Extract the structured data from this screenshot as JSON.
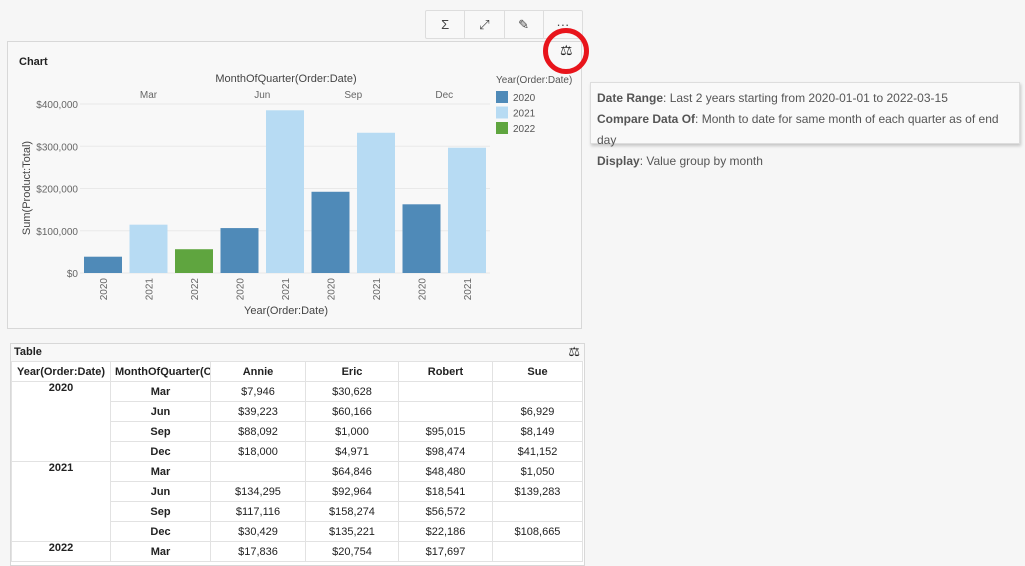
{
  "toolbar": {
    "buttons": [
      {
        "icon": "formula-icon",
        "glyph": "Σ"
      },
      {
        "icon": "expand-icon",
        "glyph": "⤢"
      },
      {
        "icon": "edit-icon",
        "glyph": "✎"
      },
      {
        "icon": "more-icon",
        "glyph": "···"
      }
    ]
  },
  "chart": {
    "title": "Chart",
    "compare_icon": "scales-icon"
  },
  "chart_data": {
    "type": "bar",
    "title": "",
    "top_axis_label": "MonthOfQuarter(Order:Date)",
    "xlabel": "Year(Order:Date)",
    "ylabel": "Sum(Product:Total)",
    "ylim": [
      0,
      400000
    ],
    "yticks": [
      "$0",
      "$100,000",
      "$200,000",
      "$300,000",
      "$400,000"
    ],
    "groups": [
      {
        "month": "Mar",
        "bars": [
          {
            "year": "2020",
            "value": 38574
          },
          {
            "year": "2021",
            "value": 114376
          },
          {
            "year": "2022",
            "value": 56287
          }
        ]
      },
      {
        "month": "Jun",
        "bars": [
          {
            "year": "2020",
            "value": 106318
          },
          {
            "year": "2021",
            "value": 385083
          }
        ]
      },
      {
        "month": "Sep",
        "bars": [
          {
            "year": "2020",
            "value": 192256
          },
          {
            "year": "2021",
            "value": 331962
          }
        ]
      },
      {
        "month": "Dec",
        "bars": [
          {
            "year": "2020",
            "value": 162597
          },
          {
            "year": "2021",
            "value": 296501
          }
        ]
      }
    ],
    "legend": {
      "title": "Year(Order:Date)",
      "placement": "right",
      "entries": [
        {
          "name": "2020",
          "color": "#4f8ab8"
        },
        {
          "name": "2021",
          "color": "#b7dbf3"
        },
        {
          "name": "2022",
          "color": "#5fa53f"
        }
      ]
    }
  },
  "tooltip": {
    "lines": [
      {
        "k": "Date Range",
        "v": ": Last 2 years starting from 2020-01-01 to 2022-03-15"
      },
      {
        "k": "Compare Data Of",
        "v": ": Month to date for same month of each quarter as of end day"
      },
      {
        "k": "Display",
        "v": ": Value group by month"
      }
    ]
  },
  "table": {
    "title": "Table",
    "headers": [
      "Year(Order:Date)",
      "MonthOfQuarter(Or",
      "Annie",
      "Eric",
      "Robert",
      "Sue"
    ],
    "rows": [
      {
        "year": "2020",
        "month": "Mar",
        "v": [
          "$7,946",
          "$30,628",
          "",
          ""
        ]
      },
      {
        "year": "",
        "month": "Jun",
        "v": [
          "$39,223",
          "$60,166",
          "",
          "$6,929"
        ]
      },
      {
        "year": "",
        "month": "Sep",
        "v": [
          "$88,092",
          "$1,000",
          "$95,015",
          "$8,149"
        ]
      },
      {
        "year": "",
        "month": "Dec",
        "v": [
          "$18,000",
          "$4,971",
          "$98,474",
          "$41,152"
        ]
      },
      {
        "year": "2021",
        "month": "Mar",
        "v": [
          "",
          "$64,846",
          "$48,480",
          "$1,050"
        ]
      },
      {
        "year": "",
        "month": "Jun",
        "v": [
          "$134,295",
          "$92,964",
          "$18,541",
          "$139,283"
        ]
      },
      {
        "year": "",
        "month": "Sep",
        "v": [
          "$117,116",
          "$158,274",
          "$56,572",
          ""
        ]
      },
      {
        "year": "",
        "month": "Dec",
        "v": [
          "$30,429",
          "$135,221",
          "$22,186",
          "$108,665"
        ]
      },
      {
        "year": "2022",
        "month": "Mar",
        "v": [
          "$17,836",
          "$20,754",
          "$17,697",
          ""
        ]
      }
    ]
  }
}
